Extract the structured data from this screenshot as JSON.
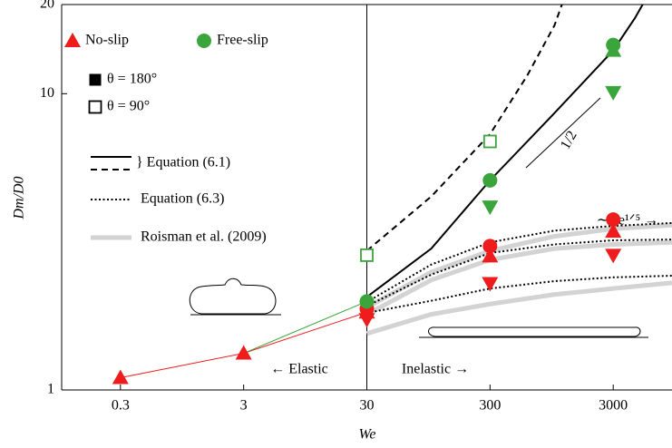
{
  "chart_data": {
    "type": "scatter",
    "xlabel": "We",
    "ylabel": "Dm/D0",
    "xscale": "log",
    "yscale": "log",
    "xlim": [
      0.1,
      9000
    ],
    "ylim": [
      1,
      20
    ],
    "xticks": [
      0.3,
      3,
      30,
      300,
      3000
    ],
    "yticks": [
      1,
      10,
      20
    ],
    "vline": 30,
    "series": [
      {
        "name": "No-slip",
        "color": "#ee1c1c",
        "groups": [
          {
            "marker": "triangle-up",
            "filled": true,
            "x": [
              0.3,
              3,
              30,
              300,
              3000
            ],
            "values": [
              1.1,
              1.33,
              1.83,
              2.83,
              3.43
            ]
          },
          {
            "marker": "circle",
            "filled": true,
            "x": [
              30,
              300,
              3000
            ],
            "values": [
              1.88,
              3.06,
              3.76
            ]
          },
          {
            "marker": "triangle-down",
            "filled": true,
            "x": [
              30,
              300,
              3000
            ],
            "values": [
              1.73,
              2.29,
              2.85
            ]
          }
        ]
      },
      {
        "name": "Free-slip",
        "color": "#3aa53a",
        "groups": [
          {
            "marker": "circle",
            "filled": true,
            "x": [
              30,
              300,
              3000
            ],
            "values": [
              1.99,
              5.1,
              14.6
            ]
          },
          {
            "marker": "triangle-up",
            "filled": true,
            "x": [
              3000
            ],
            "values": [
              14.0
            ]
          },
          {
            "marker": "triangle-down",
            "filled": true,
            "x": [
              300,
              3000
            ],
            "values": [
              4.15,
              10.1
            ]
          },
          {
            "marker": "square",
            "filled": false,
            "x": [
              30,
              300
            ],
            "values": [
              2.85,
              6.9
            ]
          }
        ]
      }
    ],
    "marker_legend": [
      {
        "label": "θ = 180°",
        "filled": true
      },
      {
        "label": "θ = 90°",
        "filled": false
      }
    ],
    "lines": [
      {
        "style": "thin",
        "color": "#ee1c1c",
        "x": [
          0.3,
          3,
          30
        ],
        "values": [
          1.1,
          1.33,
          1.83
        ]
      },
      {
        "style": "thin",
        "color": "#3aa53a",
        "x": [
          3,
          30
        ],
        "values": [
          1.33,
          1.99
        ]
      },
      {
        "style": "solid",
        "color": "#000000",
        "x": [
          30,
          100,
          300,
          1000,
          3000,
          4500,
          5200
        ],
        "values": [
          2.06,
          3.0,
          5.1,
          8.6,
          14,
          18,
          20
        ]
      },
      {
        "style": "dashed",
        "color": "#000000",
        "x": [
          30,
          100,
          300,
          600,
          1000,
          1150
        ],
        "values": [
          2.95,
          4.5,
          7.3,
          11.5,
          17,
          20
        ]
      },
      {
        "style": "gray",
        "color": "#d3d3d3",
        "x": [
          30,
          100,
          300,
          1000,
          3000,
          9000
        ],
        "values": [
          1.9,
          2.5,
          2.95,
          3.3,
          3.5,
          3.6
        ]
      },
      {
        "style": "gray",
        "color": "#d3d3d3",
        "x": [
          30,
          100,
          300,
          1000,
          3000,
          9000
        ],
        "values": [
          1.8,
          2.35,
          2.75,
          3.0,
          3.1,
          3.15
        ]
      },
      {
        "style": "gray",
        "color": "#d3d3d3",
        "x": [
          30,
          100,
          300,
          1000,
          3000,
          9000
        ],
        "values": [
          1.55,
          1.8,
          1.95,
          2.1,
          2.2,
          2.3
        ]
      },
      {
        "style": "dotted",
        "color": "#000000",
        "x": [
          30,
          100,
          300,
          1000,
          3000,
          9000
        ],
        "values": [
          1.98,
          2.65,
          3.15,
          3.45,
          3.58,
          3.66
        ]
      },
      {
        "style": "dotted",
        "color": "#000000",
        "x": [
          30,
          100,
          300,
          1000,
          3000,
          9000
        ],
        "values": [
          1.92,
          2.45,
          2.9,
          3.1,
          3.2,
          3.22
        ]
      },
      {
        "style": "dotted",
        "color": "#000000",
        "x": [
          30,
          100,
          300,
          1000,
          3000,
          9000
        ],
        "values": [
          1.82,
          2.0,
          2.2,
          2.33,
          2.4,
          2.43
        ]
      }
    ],
    "line_legend": [
      {
        "label": "} Equation (6.1)",
        "styles": [
          "solid",
          "dashed"
        ]
      },
      {
        "label": "Equation (6.3)",
        "styles": [
          "dotted"
        ]
      },
      {
        "label": "Roisman et al. (2009)",
        "styles": [
          "gray"
        ]
      }
    ],
    "annotations": {
      "slope": "1/2",
      "scaling": "∼Re¹ᐟ⁵ →",
      "elastic": "← Elastic",
      "inelastic": "Inelastic →"
    }
  }
}
